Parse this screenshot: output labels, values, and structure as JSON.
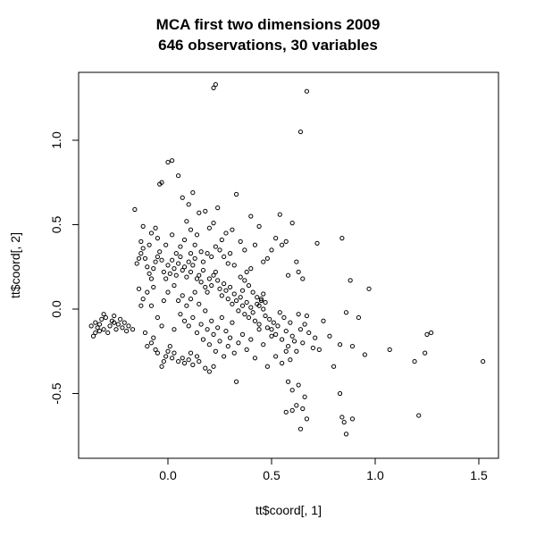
{
  "chart_data": {
    "type": "scatter",
    "title": "MCA first two dimensions 2009",
    "subtitle": "646 observations, 30 variables",
    "xlabel": "tt$coord[, 1]",
    "ylabel": "tt$coord[, 2]",
    "xlim": [
      -0.4,
      1.6
    ],
    "ylim": [
      -0.8,
      1.35
    ],
    "xticks": [
      "0.0",
      "0.5",
      "1.0",
      "1.5"
    ],
    "xtick_values": [
      0.0,
      0.5,
      1.0,
      1.5
    ],
    "yticks": [
      "-0.5",
      "0.0",
      "0.5",
      "1.0"
    ],
    "ytick_values": [
      -0.5,
      0.0,
      0.5,
      1.0
    ],
    "grid": false,
    "marker": "open-circle",
    "series": [
      {
        "points": [
          [
            -0.36,
            -0.16
          ],
          [
            -0.35,
            -0.14
          ],
          [
            -0.34,
            -0.11
          ],
          [
            -0.33,
            -0.09
          ],
          [
            -0.32,
            -0.06
          ],
          [
            -0.31,
            -0.03
          ],
          [
            -0.3,
            -0.05
          ],
          [
            -0.28,
            -0.1
          ],
          [
            -0.27,
            -0.07
          ],
          [
            -0.26,
            -0.04
          ],
          [
            -0.25,
            -0.12
          ],
          [
            -0.24,
            -0.09
          ],
          [
            -0.22,
            -0.11
          ],
          [
            -0.21,
            -0.08
          ],
          [
            -0.19,
            -0.1
          ],
          [
            -0.17,
            -0.12
          ],
          [
            -0.35,
            -0.08
          ],
          [
            -0.33,
            -0.13
          ],
          [
            -0.29,
            -0.14
          ],
          [
            -0.23,
            -0.06
          ],
          [
            -0.2,
            -0.13
          ],
          [
            -0.37,
            -0.1
          ],
          [
            -0.31,
            -0.12
          ],
          [
            -0.26,
            -0.08
          ],
          [
            -0.15,
            0.27
          ],
          [
            -0.14,
            0.3
          ],
          [
            -0.13,
            0.33
          ],
          [
            -0.12,
            0.36
          ],
          [
            -0.11,
            0.3
          ],
          [
            -0.1,
            0.25
          ],
          [
            -0.09,
            0.21
          ],
          [
            -0.08,
            0.18
          ],
          [
            -0.07,
            0.24
          ],
          [
            -0.06,
            0.28
          ],
          [
            -0.05,
            0.31
          ],
          [
            -0.04,
            0.34
          ],
          [
            -0.03,
            0.29
          ],
          [
            -0.02,
            0.22
          ],
          [
            -0.01,
            0.18
          ],
          [
            0.0,
            0.26
          ],
          [
            0.01,
            0.21
          ],
          [
            0.02,
            0.29
          ],
          [
            0.03,
            0.24
          ],
          [
            0.04,
            0.2
          ],
          [
            0.05,
            0.27
          ],
          [
            0.06,
            0.31
          ],
          [
            0.07,
            0.23
          ],
          [
            0.08,
            0.25
          ],
          [
            0.09,
            0.19
          ],
          [
            0.1,
            0.28
          ],
          [
            0.11,
            0.22
          ],
          [
            0.12,
            0.26
          ],
          [
            0.13,
            0.3
          ],
          [
            0.14,
            0.18
          ],
          [
            -0.12,
            0.49
          ],
          [
            -0.08,
            0.45
          ],
          [
            -0.05,
            0.42
          ],
          [
            -0.13,
            0.4
          ],
          [
            -0.09,
            0.38
          ],
          [
            -0.06,
            0.48
          ],
          [
            -0.16,
            0.59
          ],
          [
            -0.04,
            0.74
          ],
          [
            -0.03,
            0.75
          ],
          [
            0.0,
            0.87
          ],
          [
            0.02,
            0.88
          ],
          [
            0.05,
            0.79
          ],
          [
            0.07,
            0.66
          ],
          [
            0.1,
            0.62
          ],
          [
            0.09,
            0.52
          ],
          [
            0.11,
            0.47
          ],
          [
            0.15,
            0.57
          ],
          [
            0.14,
            0.44
          ],
          [
            0.12,
            0.69
          ],
          [
            0.18,
            0.58
          ],
          [
            0.2,
            0.48
          ],
          [
            0.22,
            0.51
          ],
          [
            0.24,
            0.6
          ],
          [
            0.26,
            0.41
          ],
          [
            0.28,
            0.45
          ],
          [
            0.31,
            0.47
          ],
          [
            0.33,
            0.68
          ],
          [
            0.35,
            0.4
          ],
          [
            0.37,
            0.35
          ],
          [
            0.4,
            0.55
          ],
          [
            0.42,
            0.38
          ],
          [
            0.44,
            0.49
          ],
          [
            0.46,
            0.28
          ],
          [
            0.48,
            0.3
          ],
          [
            0.5,
            0.35
          ],
          [
            0.52,
            0.42
          ],
          [
            0.54,
            0.56
          ],
          [
            0.55,
            0.38
          ],
          [
            0.57,
            0.4
          ],
          [
            0.58,
            0.2
          ],
          [
            0.6,
            0.51
          ],
          [
            0.62,
            0.28
          ],
          [
            0.63,
            0.22
          ],
          [
            0.65,
            0.18
          ],
          [
            0.72,
            0.39
          ],
          [
            0.84,
            0.42
          ],
          [
            0.88,
            0.17
          ],
          [
            0.97,
            0.12
          ],
          [
            0.22,
            1.31
          ],
          [
            0.23,
            1.33
          ],
          [
            0.67,
            1.29
          ],
          [
            0.64,
            1.05
          ],
          [
            0.15,
            0.2
          ],
          [
            0.16,
            0.16
          ],
          [
            0.17,
            0.23
          ],
          [
            0.18,
            0.13
          ],
          [
            0.19,
            0.1
          ],
          [
            0.2,
            0.18
          ],
          [
            0.21,
            0.14
          ],
          [
            0.22,
            0.2
          ],
          [
            0.23,
            0.22
          ],
          [
            0.24,
            0.17
          ],
          [
            0.25,
            0.12
          ],
          [
            0.26,
            0.08
          ],
          [
            0.27,
            0.15
          ],
          [
            0.28,
            0.11
          ],
          [
            0.29,
            0.06
          ],
          [
            0.3,
            0.13
          ],
          [
            0.31,
            0.03
          ],
          [
            0.32,
            0.09
          ],
          [
            0.33,
            0.05
          ],
          [
            0.34,
            -0.01
          ],
          [
            0.35,
            0.07
          ],
          [
            0.36,
            0.02
          ],
          [
            0.37,
            -0.03
          ],
          [
            0.38,
            0.04
          ],
          [
            0.39,
            -0.05
          ],
          [
            0.4,
            0.01
          ],
          [
            0.41,
            -0.02
          ],
          [
            0.42,
            -0.07
          ],
          [
            0.43,
            0.03
          ],
          [
            0.44,
            -0.09
          ],
          [
            0.45,
            0.05
          ],
          [
            0.46,
            0.0
          ],
          [
            0.47,
            -0.04
          ],
          [
            0.48,
            -0.11
          ],
          [
            0.49,
            -0.06
          ],
          [
            0.5,
            -0.12
          ],
          [
            0.51,
            -0.08
          ],
          [
            0.52,
            -0.15
          ],
          [
            0.53,
            -0.1
          ],
          [
            0.54,
            -0.02
          ],
          [
            0.55,
            -0.18
          ],
          [
            0.56,
            -0.05
          ],
          [
            0.57,
            -0.13
          ],
          [
            0.58,
            -0.22
          ],
          [
            0.59,
            -0.08
          ],
          [
            0.6,
            -0.16
          ],
          [
            0.61,
            -0.19
          ],
          [
            0.62,
            -0.25
          ],
          [
            0.63,
            -0.03
          ],
          [
            0.64,
            -0.12
          ],
          [
            0.65,
            -0.2
          ],
          [
            0.66,
            -0.09
          ],
          [
            0.67,
            -0.04
          ],
          [
            0.68,
            -0.14
          ],
          [
            0.7,
            -0.23
          ],
          [
            0.71,
            -0.17
          ],
          [
            0.73,
            -0.24
          ],
          [
            0.75,
            -0.07
          ],
          [
            0.78,
            -0.16
          ],
          [
            0.8,
            -0.34
          ],
          [
            0.83,
            -0.21
          ],
          [
            0.86,
            -0.02
          ],
          [
            0.89,
            -0.22
          ],
          [
            0.92,
            -0.05
          ],
          [
            0.95,
            -0.27
          ],
          [
            1.07,
            -0.24
          ],
          [
            1.19,
            -0.31
          ],
          [
            1.24,
            -0.26
          ],
          [
            1.25,
            -0.15
          ],
          [
            1.27,
            -0.14
          ],
          [
            1.52,
            -0.31
          ],
          [
            0.05,
            0.05
          ],
          [
            0.06,
            -0.03
          ],
          [
            0.07,
            0.08
          ],
          [
            0.08,
            -0.07
          ],
          [
            0.09,
            0.02
          ],
          [
            0.1,
            -0.1
          ],
          [
            0.11,
            0.06
          ],
          [
            0.12,
            -0.05
          ],
          [
            0.13,
            0.1
          ],
          [
            0.14,
            -0.14
          ],
          [
            0.15,
            0.03
          ],
          [
            0.16,
            -0.09
          ],
          [
            0.17,
            -0.18
          ],
          [
            0.18,
            -0.01
          ],
          [
            0.19,
            -0.12
          ],
          [
            0.2,
            -0.21
          ],
          [
            0.21,
            -0.07
          ],
          [
            0.22,
            -0.15
          ],
          [
            0.23,
            -0.25
          ],
          [
            0.24,
            -0.11
          ],
          [
            0.25,
            -0.19
          ],
          [
            0.26,
            -0.05
          ],
          [
            0.27,
            -0.28
          ],
          [
            0.28,
            -0.13
          ],
          [
            0.29,
            -0.22
          ],
          [
            0.3,
            -0.17
          ],
          [
            0.31,
            -0.08
          ],
          [
            0.32,
            -0.26
          ],
          [
            0.33,
            -0.43
          ],
          [
            0.34,
            -0.2
          ],
          [
            0.36,
            -0.15
          ],
          [
            0.38,
            -0.24
          ],
          [
            0.4,
            -0.18
          ],
          [
            0.42,
            -0.29
          ],
          [
            0.44,
            -0.12
          ],
          [
            0.46,
            -0.21
          ],
          [
            0.48,
            -0.34
          ],
          [
            0.5,
            -0.16
          ],
          [
            0.52,
            -0.28
          ],
          [
            0.55,
            -0.32
          ],
          [
            0.57,
            -0.25
          ],
          [
            0.59,
            -0.3
          ],
          [
            0.01,
            -0.22
          ],
          [
            0.0,
            -0.25
          ],
          [
            -0.01,
            -0.28
          ],
          [
            -0.02,
            -0.31
          ],
          [
            -0.03,
            -0.34
          ],
          [
            0.02,
            -0.29
          ],
          [
            0.03,
            -0.26
          ],
          [
            0.05,
            -0.31
          ],
          [
            0.07,
            -0.29
          ],
          [
            0.08,
            -0.32
          ],
          [
            0.1,
            -0.3
          ],
          [
            0.12,
            -0.33
          ],
          [
            0.15,
            -0.31
          ],
          [
            0.18,
            -0.35
          ],
          [
            0.2,
            -0.37
          ],
          [
            0.22,
            -0.34
          ],
          [
            0.14,
            -0.28
          ],
          [
            0.11,
            -0.26
          ],
          [
            -0.06,
            -0.24
          ],
          [
            -0.05,
            -0.26
          ],
          [
            -0.08,
            -0.2
          ],
          [
            -0.07,
            -0.17
          ],
          [
            -0.1,
            -0.22
          ],
          [
            -0.11,
            -0.14
          ],
          [
            -0.05,
            -0.05
          ],
          [
            -0.03,
            -0.1
          ],
          [
            -0.02,
            0.05
          ],
          [
            0.03,
            -0.12
          ],
          [
            0.0,
            0.1
          ],
          [
            0.58,
            -0.43
          ],
          [
            0.6,
            -0.48
          ],
          [
            0.63,
            -0.45
          ],
          [
            0.66,
            -0.52
          ],
          [
            0.62,
            -0.57
          ],
          [
            0.65,
            -0.59
          ],
          [
            0.67,
            -0.65
          ],
          [
            0.57,
            -0.61
          ],
          [
            0.6,
            -0.6
          ],
          [
            0.64,
            -0.71
          ],
          [
            0.83,
            -0.5
          ],
          [
            0.84,
            -0.64
          ],
          [
            0.85,
            -0.67
          ],
          [
            0.86,
            -0.74
          ],
          [
            0.89,
            -0.65
          ],
          [
            1.21,
            -0.63
          ],
          [
            0.45,
            0.06
          ],
          [
            0.46,
            0.09
          ],
          [
            0.44,
            0.02
          ],
          [
            0.43,
            0.07
          ],
          [
            0.47,
            0.04
          ],
          [
            0.41,
            0.1
          ],
          [
            0.39,
            0.14
          ],
          [
            0.37,
            0.17
          ],
          [
            0.36,
            0.11
          ],
          [
            0.35,
            0.19
          ],
          [
            0.38,
            0.22
          ],
          [
            0.4,
            0.24
          ],
          [
            0.27,
            0.31
          ],
          [
            0.29,
            0.27
          ],
          [
            0.3,
            0.33
          ],
          [
            0.32,
            0.26
          ],
          [
            0.25,
            0.35
          ],
          [
            0.23,
            0.37
          ],
          [
            0.21,
            0.31
          ],
          [
            0.19,
            0.33
          ],
          [
            0.17,
            0.28
          ],
          [
            0.16,
            0.34
          ],
          [
            0.13,
            0.38
          ],
          [
            0.11,
            0.33
          ],
          [
            0.08,
            0.41
          ],
          [
            0.06,
            0.37
          ],
          [
            0.04,
            0.33
          ],
          [
            0.02,
            0.44
          ],
          [
            -0.01,
            0.38
          ],
          [
            0.03,
            0.14
          ],
          [
            -0.12,
            0.06
          ],
          [
            -0.1,
            0.1
          ],
          [
            -0.08,
            0.02
          ],
          [
            -0.07,
            0.13
          ],
          [
            -0.14,
            0.12
          ],
          [
            -0.13,
            0.02
          ]
        ]
      }
    ]
  }
}
